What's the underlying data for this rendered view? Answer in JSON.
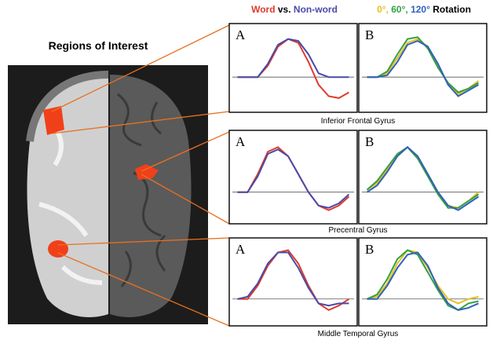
{
  "figure": {
    "title": "Regions of Interest",
    "legend_a": [
      {
        "text": "Word",
        "color": "#e03a2a"
      },
      {
        "text": "vs.",
        "color": "#000000"
      },
      {
        "text": "Non-word",
        "color": "#4a4aa8"
      }
    ],
    "legend_b": [
      {
        "text": "0°,",
        "color": "#e8c020"
      },
      {
        "text": "60°,",
        "color": "#33a040"
      },
      {
        "text": "120°",
        "color": "#3060c0"
      },
      {
        "text": "Rotation",
        "color": "#000000"
      }
    ],
    "regions": [
      "Inferior Frontal Gyrus",
      "Precentral Gyrus",
      "Middle Temporal Gyrus"
    ]
  },
  "chart_data": [
    {
      "type": "line",
      "panel": "A",
      "x": [
        1,
        2,
        3,
        4,
        5,
        6,
        7,
        8,
        9,
        10,
        11,
        12
      ],
      "xlim": [
        0.5,
        12.5
      ],
      "ylim": [
        -0.8,
        1.2
      ],
      "series": [
        {
          "color": "#e03a2a",
          "values": [
            0,
            0,
            0,
            0.3,
            0.8,
            1,
            0.9,
            0.4,
            -0.2,
            -0.5,
            -0.55,
            -0.4
          ]
        },
        {
          "color": "#4a4aa8",
          "values": [
            0,
            0,
            0,
            0.35,
            0.85,
            1,
            0.95,
            0.6,
            0.1,
            0,
            0,
            0
          ]
        }
      ]
    },
    {
      "type": "line",
      "panel": "B",
      "x": [
        1,
        2,
        3,
        4,
        5,
        6,
        7,
        8,
        9,
        10,
        11,
        12
      ],
      "xlim": [
        0.5,
        12.5
      ],
      "ylim": [
        -0.8,
        1.2
      ],
      "series": [
        {
          "color": "#e8c020",
          "values": [
            0,
            0,
            0.1,
            0.5,
            0.9,
            1,
            0.8,
            0.3,
            -0.2,
            -0.45,
            -0.3,
            -0.1
          ]
        },
        {
          "color": "#33a040",
          "values": [
            0,
            0,
            0.15,
            0.6,
            1,
            1.05,
            0.75,
            0.25,
            -0.15,
            -0.4,
            -0.3,
            -0.15
          ]
        },
        {
          "color": "#3060c0",
          "values": [
            0,
            0,
            0.05,
            0.4,
            0.85,
            0.95,
            0.8,
            0.35,
            -0.2,
            -0.5,
            -0.35,
            -0.2
          ]
        }
      ]
    },
    {
      "type": "line",
      "panel": "A",
      "x": [
        1,
        2,
        3,
        4,
        5,
        6,
        7,
        8,
        9,
        10,
        11,
        12
      ],
      "xlim": [
        0.5,
        12.5
      ],
      "ylim": [
        -0.6,
        1.2
      ],
      "series": [
        {
          "color": "#e03a2a",
          "values": [
            0,
            0,
            0.4,
            0.9,
            1,
            0.8,
            0.4,
            0,
            -0.3,
            -0.4,
            -0.3,
            -0.1
          ]
        },
        {
          "color": "#4a4aa8",
          "values": [
            0,
            0,
            0.35,
            0.85,
            0.95,
            0.8,
            0.4,
            0,
            -0.3,
            -0.35,
            -0.25,
            -0.05
          ]
        }
      ]
    },
    {
      "type": "line",
      "panel": "B",
      "x": [
        1,
        2,
        3,
        4,
        5,
        6,
        7,
        8,
        9,
        10,
        11,
        12
      ],
      "xlim": [
        0.5,
        12.5
      ],
      "ylim": [
        -0.6,
        1.2
      ],
      "series": [
        {
          "color": "#e8c020",
          "values": [
            0.05,
            0.2,
            0.5,
            0.8,
            1,
            0.8,
            0.4,
            0,
            -0.3,
            -0.35,
            -0.2,
            0
          ]
        },
        {
          "color": "#33a040",
          "values": [
            0.05,
            0.25,
            0.55,
            0.85,
            1,
            0.75,
            0.35,
            -0.05,
            -0.35,
            -0.35,
            -0.2,
            -0.05
          ]
        },
        {
          "color": "#3060c0",
          "values": [
            0,
            0.15,
            0.45,
            0.8,
            1,
            0.8,
            0.4,
            0,
            -0.3,
            -0.4,
            -0.25,
            -0.1
          ]
        }
      ]
    },
    {
      "type": "line",
      "panel": "A",
      "x": [
        1,
        2,
        3,
        4,
        5,
        6,
        7,
        8,
        9,
        10,
        11,
        12
      ],
      "xlim": [
        0.5,
        12.5
      ],
      "ylim": [
        -0.5,
        1.2
      ],
      "series": [
        {
          "color": "#e03a2a",
          "values": [
            0,
            0,
            0.3,
            0.75,
            1.05,
            1.1,
            0.8,
            0.3,
            -0.1,
            -0.25,
            -0.15,
            0
          ]
        },
        {
          "color": "#4a4aa8",
          "values": [
            0,
            0.05,
            0.35,
            0.8,
            1.05,
            1.05,
            0.7,
            0.25,
            -0.1,
            -0.15,
            -0.1,
            -0.1
          ]
        }
      ]
    },
    {
      "type": "line",
      "panel": "B",
      "x": [
        1,
        2,
        3,
        4,
        5,
        6,
        7,
        8,
        9,
        10,
        11,
        12
      ],
      "xlim": [
        0.5,
        12.5
      ],
      "ylim": [
        -0.5,
        1.2
      ],
      "series": [
        {
          "color": "#e8c020",
          "values": [
            0,
            0.05,
            0.35,
            0.8,
            1.1,
            1.05,
            0.7,
            0.3,
            0,
            -0.1,
            0,
            0.05
          ]
        },
        {
          "color": "#33a040",
          "values": [
            0,
            0.1,
            0.45,
            0.9,
            1.1,
            1,
            0.6,
            0.2,
            -0.15,
            -0.25,
            -0.1,
            -0.05
          ]
        },
        {
          "color": "#3060c0",
          "values": [
            0,
            0,
            0.3,
            0.7,
            1,
            1.05,
            0.75,
            0.25,
            -0.1,
            -0.25,
            -0.2,
            -0.1
          ]
        }
      ]
    }
  ]
}
